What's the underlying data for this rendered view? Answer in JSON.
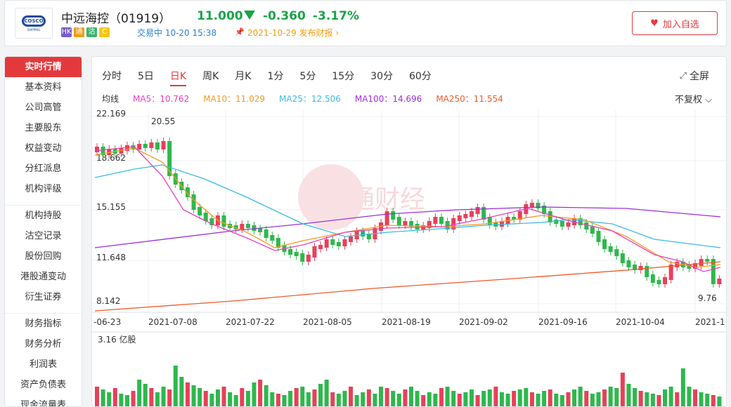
{
  "header": {
    "logo_text": "COSCO",
    "logo_sub": "SHIPPING",
    "name": "中远海控（01919）",
    "price": "11.000",
    "change": "-0.360",
    "change_pct": "-3.17%",
    "tags": [
      {
        "text": "HK",
        "color": "#7b5cc7"
      },
      {
        "text": "通",
        "color": "#f39c12"
      },
      {
        "text": "沽",
        "color": "#3cb371"
      },
      {
        "text": "C",
        "color": "#f5c518"
      }
    ],
    "status": "交易中 10-20 15:38",
    "report": "2021-10-29 发布财报 ›",
    "add_label": "加入自选"
  },
  "sidebar": {
    "groups": [
      [
        "实时行情",
        "基本资料",
        "公司高管",
        "主要股东",
        "权益变动",
        "分红派息",
        "机构评级"
      ],
      [
        "机构持股",
        "沽空记录",
        "股份回购",
        "港股通变动",
        "衍生证券"
      ],
      [
        "财务指标",
        "财务分析",
        "利润表",
        "资产负债表",
        "现金流量表"
      ]
    ]
  },
  "tabs": [
    "分时",
    "5日",
    "日K",
    "周K",
    "月K",
    "1分",
    "5分",
    "15分",
    "30分",
    "60分"
  ],
  "active_tab": "日K",
  "fullscreen_label": "全屏",
  "ma_legend": {
    "label": "均线",
    "items": [
      {
        "text": "MA5：10.762",
        "color": "#e83ebd"
      },
      {
        "text": "MA10：11.029",
        "color": "#f59a23"
      },
      {
        "text": "MA25：12.506",
        "color": "#3cb9e8"
      },
      {
        "text": "MA100：14.696",
        "color": "#9b30d9"
      },
      {
        "text": "MA250：11.554",
        "color": "#f05a28"
      }
    ]
  },
  "adjust_label": "不复权",
  "colors": {
    "up": "#e8405a",
    "down": "#2db84c"
  },
  "chart_data": {
    "type": "candlestick",
    "y_ticks": [
      "22.169",
      "18.662",
      "15.155",
      "11.648",
      "8.142"
    ],
    "x_ticks": [
      "-06-23",
      "2021-07-08",
      "2021-07-22",
      "2021-08-05",
      "2021-08-19",
      "2021-09-02",
      "2021-09-16",
      "2021-10-04",
      "2021-1"
    ],
    "high_label": "20.55",
    "low_label": "9.76",
    "volume_label": "3.16 亿股",
    "watermark": "智通财经"
  }
}
